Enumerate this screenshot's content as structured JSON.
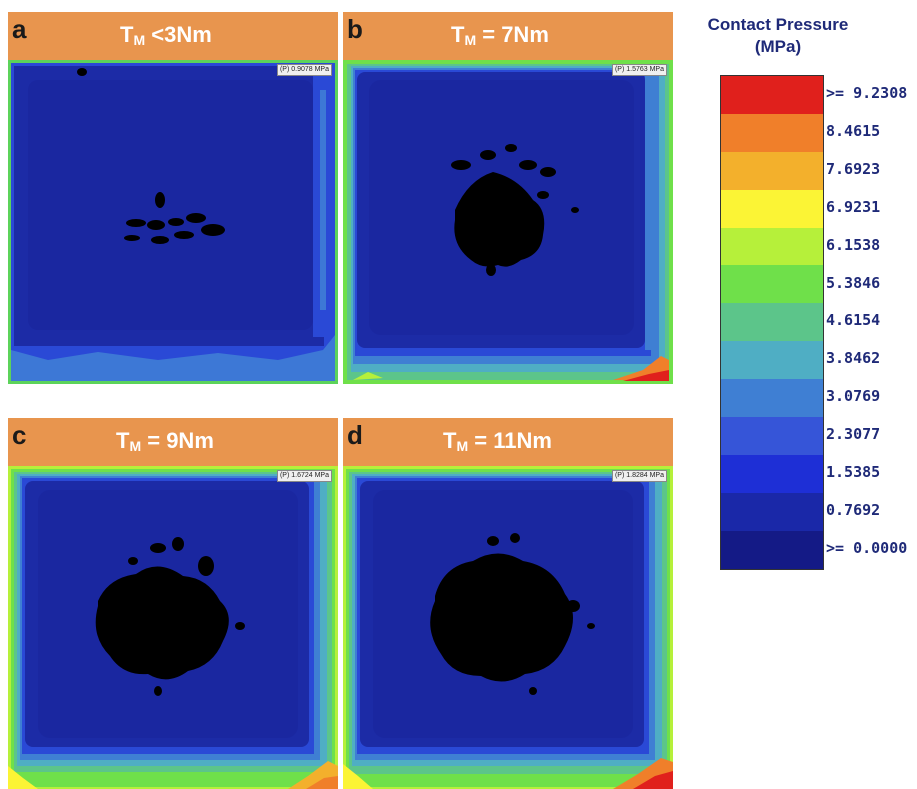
{
  "panels": [
    {
      "letter": "a",
      "t_sym": "T",
      "t_sub": "M",
      "t_rest": " <3Nm",
      "peak": "(P) 0.9078 MPa"
    },
    {
      "letter": "b",
      "t_sym": "T",
      "t_sub": "M",
      "t_rest": " = 7Nm",
      "peak": "(P) 1.5763 MPa"
    },
    {
      "letter": "c",
      "t_sym": "T",
      "t_sub": "M",
      "t_rest": " = 9Nm",
      "peak": "(P) 1.6724 MPa"
    },
    {
      "letter": "d",
      "t_sym": "T",
      "t_sub": "M",
      "t_rest": " = 11Nm",
      "peak": "(P) 1.8284 MPa"
    }
  ],
  "legend": {
    "title_line1": "Contact Pressure",
    "title_line2": "(MPa)",
    "labels": [
      ">= 9.2308",
      "8.4615",
      "7.6923",
      "6.9231",
      "6.1538",
      "5.3846",
      "4.6154",
      "3.8462",
      "3.0769",
      "2.3077",
      "1.5385",
      "0.7692",
      ">= 0.0000"
    ],
    "colors": [
      "#e0201c",
      "#f07f2a",
      "#f3b02c",
      "#fbf435",
      "#b6f03a",
      "#6fe04a",
      "#5cc58a",
      "#4faec4",
      "#3f7fd3",
      "#3655d8",
      "#1e2fd6",
      "#1a28a8",
      "#141a86"
    ]
  }
}
